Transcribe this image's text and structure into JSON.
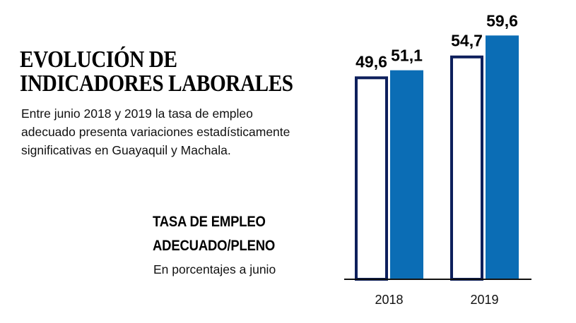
{
  "headline": {
    "line1": "EVOLUCIÓN DE",
    "line2": "INDICADORES LABORALES"
  },
  "intro": {
    "line1": "Entre junio 2018 y 2019 la tasa de empleo",
    "line2": "adecuado presenta variaciones estadísticamente",
    "line3": "significativas en Guayaquil y Machala."
  },
  "chart_data": {
    "type": "bar",
    "title_line1": "TASA DE EMPLEO",
    "title_line2": "ADECUADO/PLENO",
    "subtitle": "En porcentajes a junio",
    "categories": [
      "2018",
      "2019"
    ],
    "series": [
      {
        "values": [
          49.6,
          54.7
        ],
        "value_labels": [
          "49,6",
          "54,7"
        ],
        "style": "outline",
        "color": "#0d1f5c"
      },
      {
        "values": [
          51.1,
          59.6
        ],
        "value_labels": [
          "51,1",
          "59,6"
        ],
        "style": "filled",
        "color": "#0b6db5"
      }
    ],
    "ylim": [
      0,
      65
    ],
    "grid": false,
    "legend": "none"
  }
}
